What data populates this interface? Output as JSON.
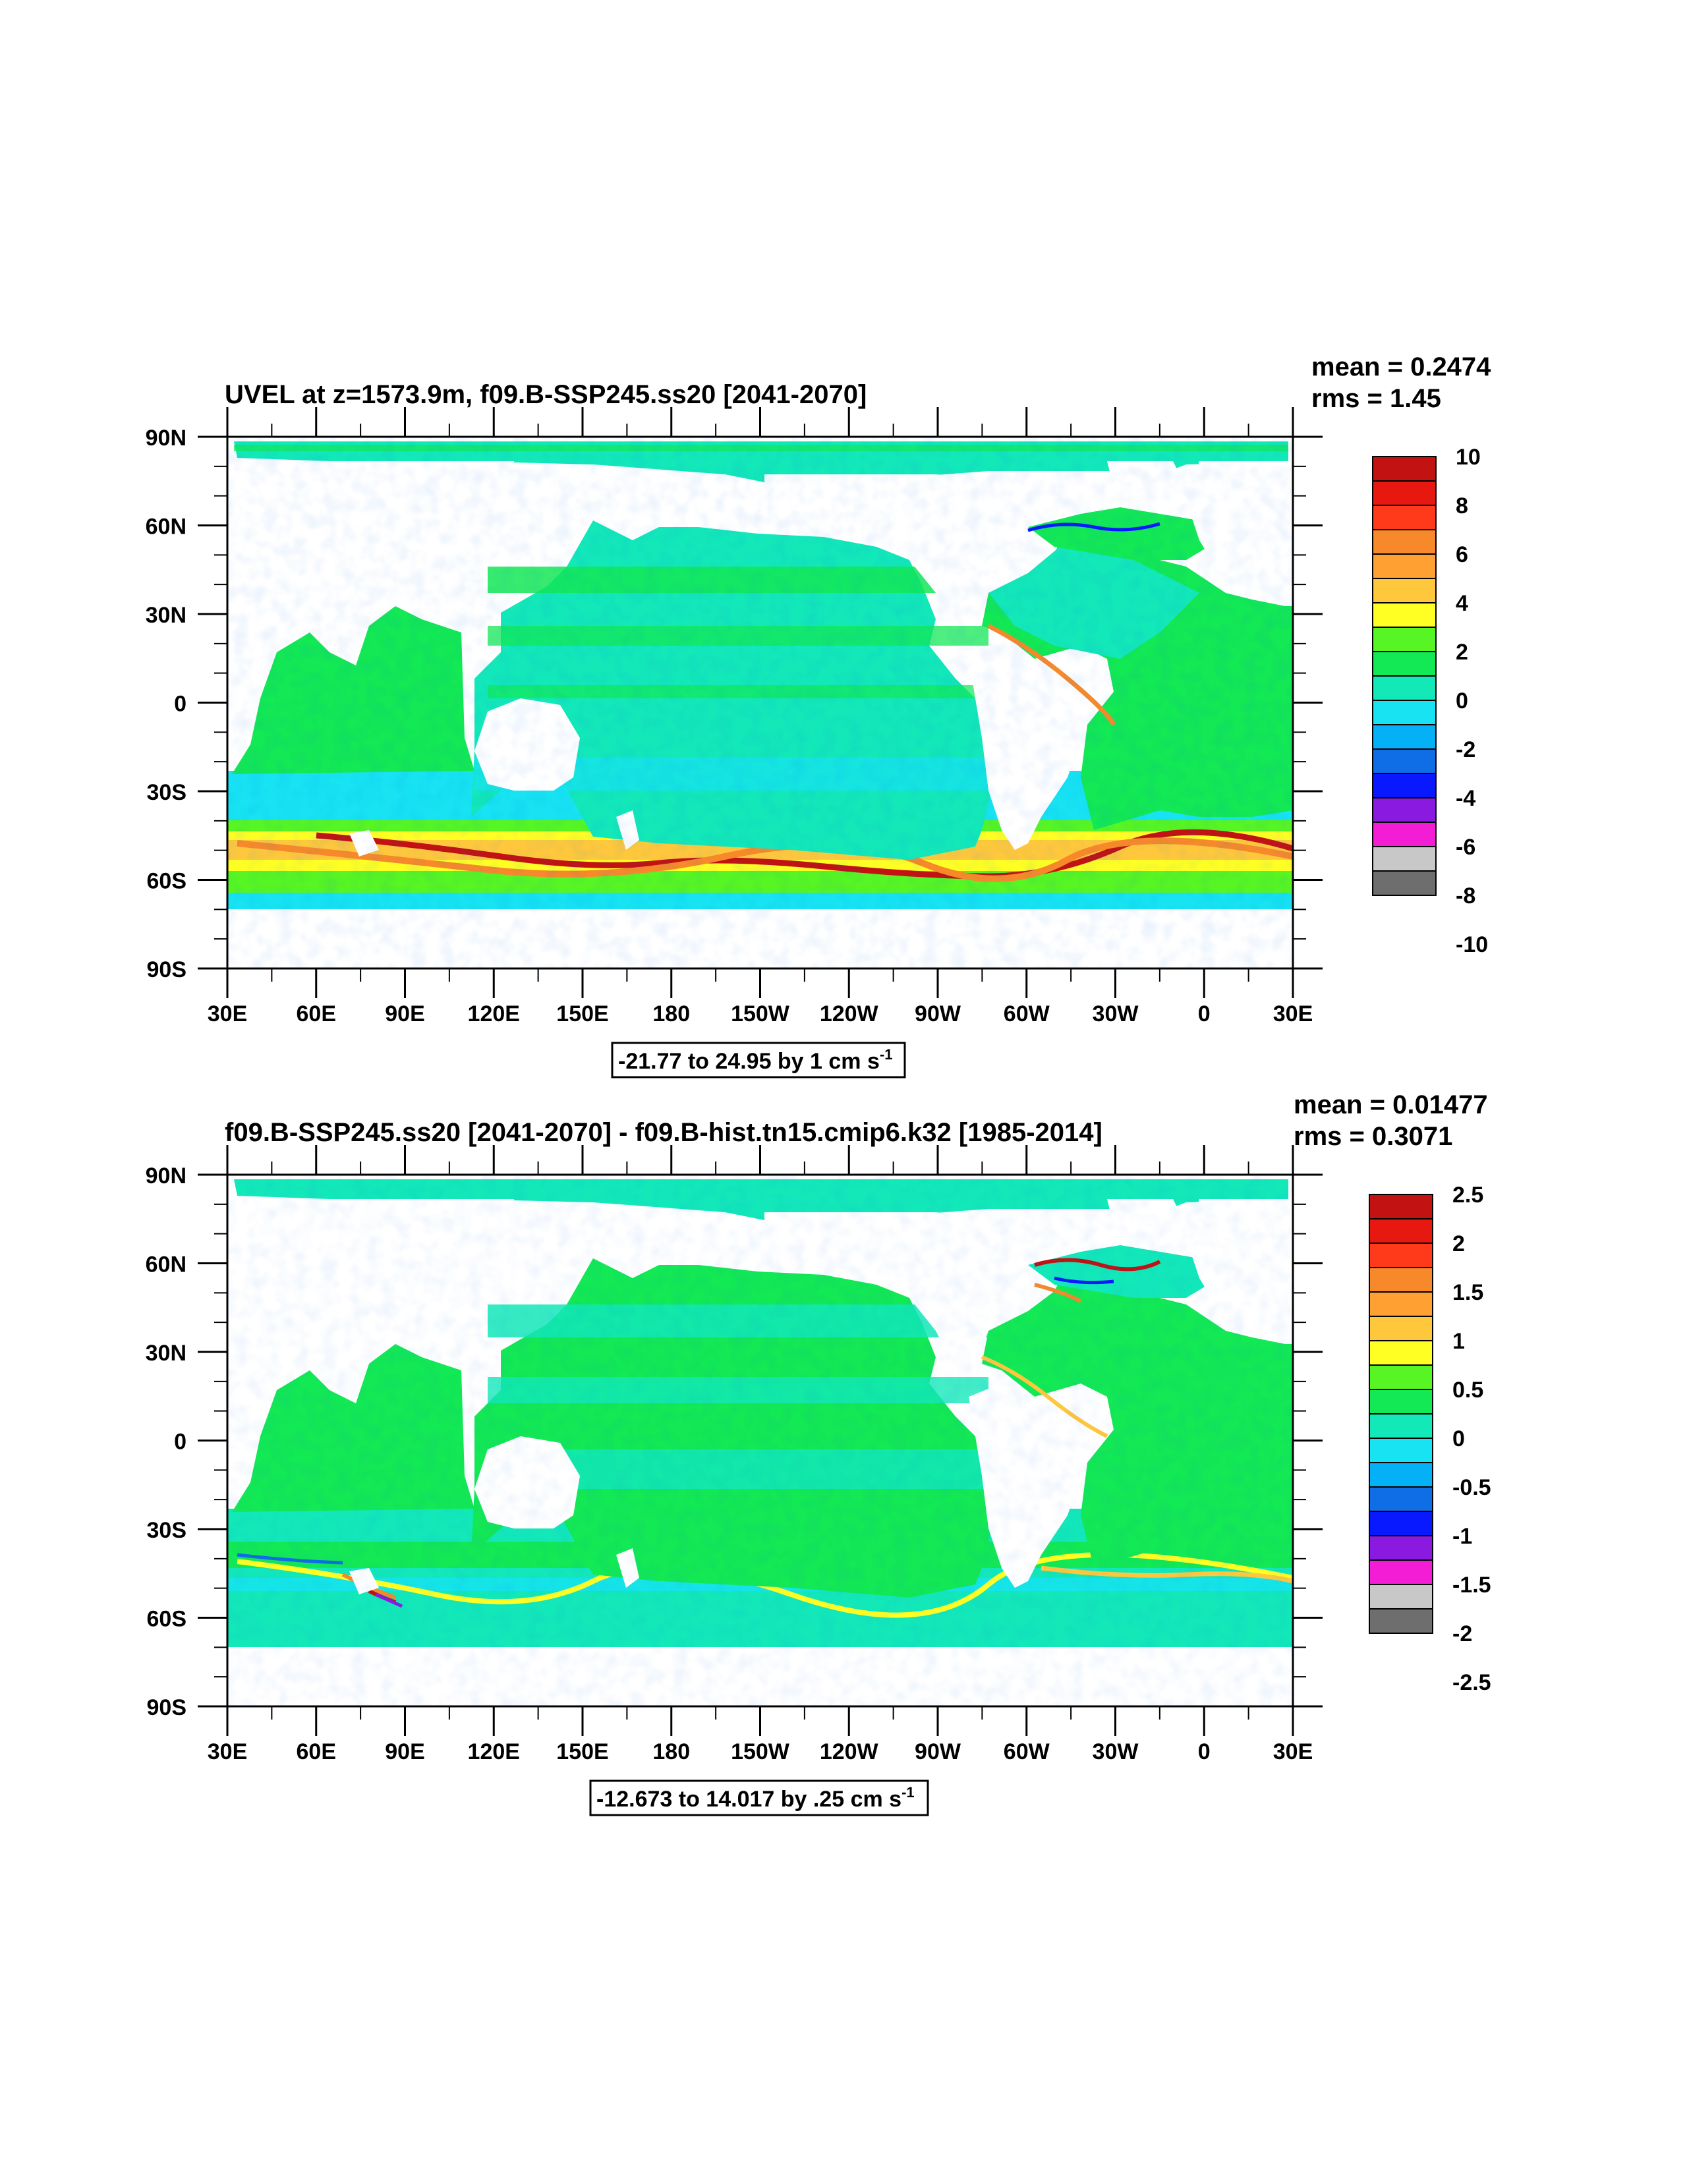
{
  "panels": [
    {
      "title": "UVEL at z=1573.9m, f09.B-SSP245.ss20 [2041-2070]",
      "mean_label": "mean = 0.2474",
      "rms_label": "rms = 1.45",
      "range_label": "-21.77 to 24.95 by 1 cm s",
      "range_superscript": "-1",
      "colorbar_labels": [
        "10",
        "8",
        "6",
        "4",
        "2",
        "0",
        "-2",
        "-4",
        "-6",
        "-8",
        "-10"
      ]
    },
    {
      "title": "f09.B-SSP245.ss20 [2041-2070] - f09.B-hist.tn15.cmip6.k32 [1985-2014]",
      "mean_label": "mean = 0.01477",
      "rms_label": "rms = 0.3071",
      "range_label": "-12.673 to 14.017 by .25 cm s",
      "range_superscript": "-1",
      "colorbar_labels": [
        "2.5",
        "2",
        "1.5",
        "1",
        "0.5",
        "0",
        "-0.5",
        "-1",
        "-1.5",
        "-2",
        "-2.5"
      ]
    }
  ],
  "lat_labels": [
    "90N",
    "60N",
    "30N",
    "0",
    "30S",
    "60S",
    "90S"
  ],
  "lon_labels": [
    "30E",
    "60E",
    "90E",
    "120E",
    "150E",
    "180",
    "150W",
    "120W",
    "90W",
    "60W",
    "30W",
    "0",
    "30E"
  ],
  "colors": {
    "palette": [
      "#c21212",
      "#e6180f",
      "#ff3a1a",
      "#f7892a",
      "#ffa033",
      "#ffc83c",
      "#ffff24",
      "#57f523",
      "#13e855",
      "#13e8b9",
      "#17e3f2",
      "#04b0f6",
      "#0f6de6",
      "#0818ff",
      "#8a1ae0",
      "#f21dd4",
      "#c8c8c8",
      "#6e6e6e"
    ],
    "colorbar_fills": [
      "#c21212",
      "#e6180f",
      "#ff3a1a",
      "#f7892a",
      "#ffa033",
      "#ffc83c",
      "#ffff24",
      "#57f523",
      "#13e855",
      "#13e8b9",
      "#17e3f2",
      "#04b0f6",
      "#0f6de6",
      "#0818ff",
      "#8a1ae0",
      "#f21dd4",
      "#c8c8c8",
      "#6e6e6e"
    ]
  }
}
